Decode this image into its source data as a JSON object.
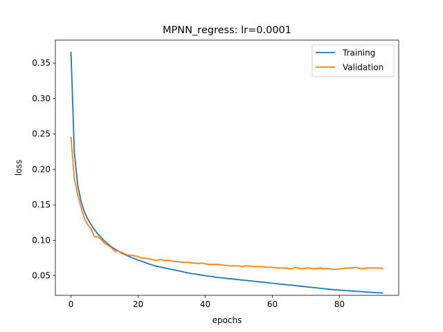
{
  "chart_data": {
    "type": "line",
    "title": "MPNN_regress: lr=0.0001",
    "xlabel": "epochs",
    "ylabel": "loss",
    "xlim": [
      -4.65,
      97.65
    ],
    "ylim": [
      0.0224,
      0.3824
    ],
    "xticks": [
      0,
      20,
      40,
      60,
      80
    ],
    "yticks": [
      0.05,
      0.1,
      0.15,
      0.2,
      0.25,
      0.3,
      0.35
    ],
    "ytick_labels": [
      "0.05",
      "0.10",
      "0.15",
      "0.20",
      "0.25",
      "0.30",
      "0.35"
    ],
    "grid": false,
    "legend_position": "top-right",
    "series": [
      {
        "name": "Training",
        "color": "#1f77b4",
        "values": [
          0.366,
          0.224,
          0.178,
          0.155,
          0.14,
          0.13,
          0.122,
          0.115,
          0.109,
          0.104,
          0.099,
          0.095,
          0.091,
          0.088,
          0.085,
          0.082,
          0.08,
          0.078,
          0.076,
          0.074,
          0.072,
          0.0705,
          0.069,
          0.067,
          0.0655,
          0.064,
          0.063,
          0.062,
          0.061,
          0.06,
          0.059,
          0.058,
          0.057,
          0.056,
          0.055,
          0.054,
          0.053,
          0.0525,
          0.0515,
          0.051,
          0.05,
          0.0495,
          0.049,
          0.048,
          0.0475,
          0.047,
          0.0465,
          0.046,
          0.0455,
          0.045,
          0.0445,
          0.044,
          0.0435,
          0.043,
          0.0425,
          0.042,
          0.0415,
          0.041,
          0.0405,
          0.04,
          0.0395,
          0.039,
          0.0385,
          0.038,
          0.0375,
          0.037,
          0.0368,
          0.036,
          0.0355,
          0.035,
          0.0345,
          0.034,
          0.0335,
          0.033,
          0.0325,
          0.032,
          0.0315,
          0.031,
          0.0305,
          0.03,
          0.0298,
          0.0295,
          0.029,
          0.0288,
          0.0285,
          0.028,
          0.0278,
          0.0275,
          0.027,
          0.0268,
          0.0265,
          0.0262,
          0.026,
          0.0257
        ]
      },
      {
        "name": "Validation",
        "color": "#ff7f0e",
        "values": [
          0.246,
          0.187,
          0.165,
          0.146,
          0.131,
          0.122,
          0.116,
          0.105,
          0.105,
          0.101,
          0.096,
          0.093,
          0.09,
          0.085,
          0.085,
          0.083,
          0.081,
          0.079,
          0.079,
          0.078,
          0.077,
          0.075,
          0.075,
          0.074,
          0.073,
          0.072,
          0.072,
          0.073,
          0.071,
          0.072,
          0.071,
          0.07,
          0.07,
          0.069,
          0.069,
          0.069,
          0.068,
          0.068,
          0.067,
          0.068,
          0.067,
          0.066,
          0.066,
          0.066,
          0.066,
          0.065,
          0.065,
          0.064,
          0.064,
          0.064,
          0.064,
          0.063,
          0.064,
          0.064,
          0.063,
          0.063,
          0.063,
          0.063,
          0.062,
          0.062,
          0.062,
          0.061,
          0.061,
          0.061,
          0.061,
          0.06,
          0.06,
          0.062,
          0.06,
          0.06,
          0.061,
          0.061,
          0.06,
          0.06,
          0.061,
          0.06,
          0.06,
          0.06,
          0.059,
          0.059,
          0.06,
          0.06,
          0.061,
          0.061,
          0.061,
          0.062,
          0.06,
          0.06,
          0.061,
          0.061,
          0.061,
          0.061,
          0.061,
          0.06
        ]
      }
    ]
  }
}
